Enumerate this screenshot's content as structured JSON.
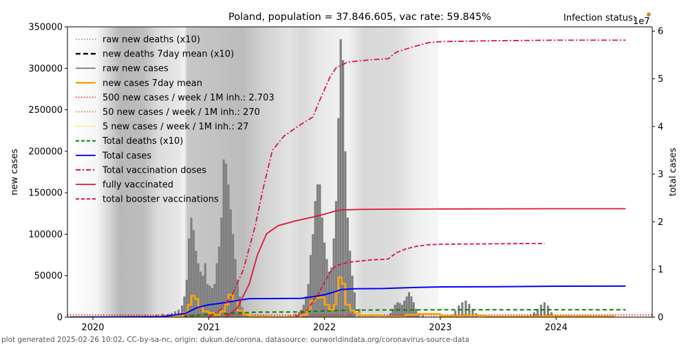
{
  "chart_data": {
    "type": "bar",
    "title": "Poland, population = 37.846.605, vac rate: 59.845%",
    "infection_status_label": "Infection status:",
    "infection_status_color": "#d08a3c",
    "right_axis_multiplier": "1e7",
    "xlabel": "",
    "ylabel": "new cases",
    "ylabel_right": "total cases",
    "xlim": [
      2019.78,
      2024.83
    ],
    "ylim": [
      0,
      350000
    ],
    "ylim_right": [
      0,
      60900000
    ],
    "xticks": [
      2020,
      2021,
      2022,
      2023,
      2024
    ],
    "xtick_labels": [
      "2020",
      "2021",
      "2022",
      "2023",
      "2024"
    ],
    "yticks": [
      0,
      50000,
      100000,
      150000,
      200000,
      250000,
      300000,
      350000
    ],
    "ytick_labels": [
      "0",
      "50000",
      "100000",
      "150000",
      "200000",
      "250000",
      "300000",
      "350000"
    ],
    "yticks_right": [
      0,
      10000000,
      20000000,
      30000000,
      40000000,
      50000000,
      60000000
    ],
    "ytick_labels_right": [
      "0",
      "1",
      "2",
      "3",
      "4",
      "5",
      "6"
    ],
    "grid": false,
    "legend_position": "top-left",
    "legend": [
      {
        "label": "raw new deaths (x10)",
        "color": "#808080",
        "style": "dotted"
      },
      {
        "label": "new deaths 7day mean (x10)",
        "color": "#000000",
        "style": "dashed-thick"
      },
      {
        "label": "raw new cases",
        "color": "#808080",
        "style": "solid"
      },
      {
        "label": "new cases 7day mean",
        "color": "#ffa500",
        "style": "solid-thick"
      },
      {
        "label": "500 new cases / week / 1M inh.: 2.703",
        "color": "#ff0000",
        "style": "dotted"
      },
      {
        "label": "50 new cases / week / 1M inh.: 270",
        "color": "#d2691e",
        "style": "dotted"
      },
      {
        "label": "5 new cases / week / 1M inh.: 27",
        "color": "#ffd700",
        "style": "dotted"
      },
      {
        "label": "Total deaths (x10)",
        "color": "#008000",
        "style": "dashed"
      },
      {
        "label": "Total cases",
        "color": "#0000ff",
        "style": "solid"
      },
      {
        "label": "Total vaccination doses",
        "color": "#dc143c",
        "style": "dashdot"
      },
      {
        "label": "fully vaccinated",
        "color": "#dc143c",
        "style": "solid"
      },
      {
        "label": "total booster vaccinations",
        "color": "#dc143c",
        "style": "dashed"
      }
    ],
    "thresholds": {
      "500_per_week_per_1M": 2703,
      "50_per_week_per_1M": 270,
      "5_per_week_per_1M": 27
    },
    "raw_new_cases": {
      "x": [
        2020.2,
        2020.25,
        2020.3,
        2020.35,
        2020.4,
        2020.45,
        2020.5,
        2020.55,
        2020.6,
        2020.65,
        2020.68,
        2020.71,
        2020.74,
        2020.77,
        2020.79,
        2020.81,
        2020.83,
        2020.85,
        2020.87,
        2020.89,
        2020.91,
        2020.93,
        2020.95,
        2020.97,
        2020.99,
        2021.01,
        2021.03,
        2021.05,
        2021.07,
        2021.09,
        2021.11,
        2021.13,
        2021.15,
        2021.17,
        2021.19,
        2021.21,
        2021.23,
        2021.25,
        2021.27,
        2021.29,
        2021.31,
        2021.33,
        2021.35,
        2021.37,
        2021.4,
        2021.45,
        2021.5,
        2021.55,
        2021.6,
        2021.65,
        2021.7,
        2021.75,
        2021.78,
        2021.8,
        2021.82,
        2021.84,
        2021.86,
        2021.88,
        2021.9,
        2021.92,
        2021.94,
        2021.96,
        2021.98,
        2022.0,
        2022.02,
        2022.04,
        2022.06,
        2022.08,
        2022.1,
        2022.12,
        2022.14,
        2022.16,
        2022.18,
        2022.2,
        2022.22,
        2022.24,
        2022.26,
        2022.3,
        2022.4,
        2022.5,
        2022.55,
        2022.57,
        2022.59,
        2022.61,
        2022.63,
        2022.65,
        2022.67,
        2022.69,
        2022.71,
        2022.73,
        2022.75,
        2022.77,
        2022.79,
        2022.81,
        2022.85,
        2022.95,
        2023.05,
        2023.1,
        2023.13,
        2023.16,
        2023.19,
        2023.22,
        2023.25,
        2023.28,
        2023.31,
        2023.4,
        2023.6,
        2023.7,
        2023.78,
        2023.81,
        2023.84,
        2023.87,
        2023.9,
        2023.93,
        2023.96,
        2024.0,
        2024.1,
        2024.3,
        2024.5
      ],
      "values": [
        300,
        600,
        500,
        500,
        1500,
        1800,
        1000,
        3000,
        4000,
        4000,
        5000,
        7000,
        9000,
        14000,
        25000,
        45000,
        95000,
        120000,
        105000,
        80000,
        65000,
        55000,
        50000,
        65000,
        40000,
        38000,
        35000,
        40000,
        65000,
        85000,
        120000,
        190000,
        185000,
        160000,
        130000,
        100000,
        70000,
        45000,
        25000,
        12000,
        5000,
        3000,
        2000,
        1000,
        600,
        400,
        300,
        300,
        500,
        1000,
        2000,
        4000,
        6000,
        9000,
        15000,
        25000,
        40000,
        75000,
        100000,
        140000,
        160000,
        160000,
        120000,
        90000,
        70000,
        55000,
        60000,
        95000,
        140000,
        240000,
        335000,
        310000,
        200000,
        120000,
        80000,
        50000,
        30000,
        10000,
        3000,
        1500,
        2000,
        5000,
        10000,
        15000,
        18000,
        17000,
        15000,
        20000,
        25000,
        30000,
        25000,
        18000,
        10000,
        5000,
        2000,
        1000,
        1000,
        3000,
        8000,
        14000,
        18000,
        20000,
        16000,
        10000,
        5000,
        1000,
        800,
        1000,
        3000,
        6000,
        10000,
        15000,
        18000,
        14000,
        6000,
        2000,
        1000,
        600,
        400
      ]
    },
    "new_cases_7day_mean": {
      "x": [
        2019.8,
        2020.7,
        2020.78,
        2020.82,
        2020.85,
        2020.88,
        2020.91,
        2020.95,
        2021.0,
        2021.05,
        2021.1,
        2021.14,
        2021.17,
        2021.21,
        2021.25,
        2021.3,
        2021.35,
        2021.5,
        2021.7,
        2021.8,
        2021.85,
        2021.88,
        2021.92,
        2021.96,
        2022.0,
        2022.04,
        2022.08,
        2022.1,
        2022.12,
        2022.15,
        2022.18,
        2022.22,
        2022.26,
        2022.3,
        2022.5,
        2022.7,
        2022.8,
        2023.0,
        2023.2,
        2023.4,
        2023.9,
        2024.1,
        2024.5
      ],
      "values": [
        0,
        1000,
        5000,
        15000,
        26000,
        22000,
        12000,
        7000,
        5000,
        3000,
        7000,
        15000,
        27000,
        20000,
        8000,
        3000,
        1000,
        300,
        500,
        3000,
        10000,
        20000,
        23000,
        24000,
        15000,
        9000,
        15000,
        30000,
        48000,
        40000,
        15000,
        8000,
        5000,
        2000,
        600,
        3000,
        4000,
        1500,
        2000,
        800,
        1500,
        1000,
        500
      ]
    },
    "total_cases": {
      "x": [
        2019.8,
        2020.6,
        2020.8,
        2020.9,
        2021.0,
        2021.1,
        2021.25,
        2021.35,
        2021.5,
        2021.8,
        2021.9,
        2022.0,
        2022.05,
        2022.1,
        2022.15,
        2022.25,
        2022.5,
        2022.8,
        2023.0,
        2023.5,
        2024.0,
        2024.6
      ],
      "values": [
        0,
        100000,
        800000,
        2000000,
        2600000,
        2900000,
        3500000,
        3880000,
        3890000,
        3950000,
        4300000,
        4700000,
        5050000,
        5400000,
        5820000,
        5950000,
        6000000,
        6250000,
        6350000,
        6400000,
        6500000,
        6520000
      ]
    },
    "total_deaths_x10": {
      "x": [
        2020.6,
        2020.8,
        2020.95,
        2021.1,
        2021.3,
        2021.4,
        2021.8,
        2022.0,
        2022.2,
        2022.4,
        2023.0,
        2024.0,
        2024.6
      ],
      "values": [
        0,
        200000,
        500000,
        700000,
        900000,
        1050000,
        1100000,
        1300000,
        1450000,
        1500000,
        1550000,
        1550000,
        1560000
      ]
    },
    "total_vaccination_doses": {
      "x": [
        2021.0,
        2021.1,
        2021.2,
        2021.3,
        2021.4,
        2021.47,
        2021.55,
        2021.65,
        2021.8,
        2021.9,
        2021.95,
        2022.05,
        2022.1,
        2022.2,
        2022.4,
        2022.55,
        2022.62,
        2022.75,
        2022.9,
        2023.0,
        2023.5,
        2024.0,
        2024.6
      ],
      "values": [
        0,
        1500000,
        4500000,
        10000000,
        19000000,
        27000000,
        35000000,
        38000000,
        40500000,
        42000000,
        45000000,
        50500000,
        52300000,
        53500000,
        54000000,
        54200000,
        55600000,
        56600000,
        57600000,
        57800000,
        58000000,
        58100000,
        58100000
      ]
    },
    "fully_vaccinated": {
      "x": [
        2021.15,
        2021.25,
        2021.35,
        2021.42,
        2021.5,
        2021.6,
        2021.75,
        2021.9,
        2022.0,
        2022.1,
        2022.15,
        2022.3,
        2022.6,
        2023.0,
        2024.0,
        2024.6
      ],
      "values": [
        0,
        2000000,
        7000000,
        13000000,
        17500000,
        19200000,
        20200000,
        21000000,
        21600000,
        22300000,
        22500000,
        22600000,
        22650000,
        22700000,
        22750000,
        22750000
      ]
    },
    "total_booster_vaccinations": {
      "x": [
        2021.75,
        2021.85,
        2021.95,
        2022.05,
        2022.1,
        2022.2,
        2022.4,
        2022.55,
        2022.62,
        2022.7,
        2022.8,
        2022.9,
        2023.0,
        2023.5,
        2023.9
      ],
      "values": [
        0,
        1500000,
        5000000,
        9500000,
        10800000,
        11500000,
        12000000,
        12200000,
        13500000,
        14300000,
        14900000,
        15200000,
        15300000,
        15400000,
        15450000
      ]
    },
    "footer": "plot generated 2025-02-26 10:02, CC-by-sa-nc, origin: dukun.de/corona, datasource: ourworldindata.org/coronavirus-source-data"
  }
}
